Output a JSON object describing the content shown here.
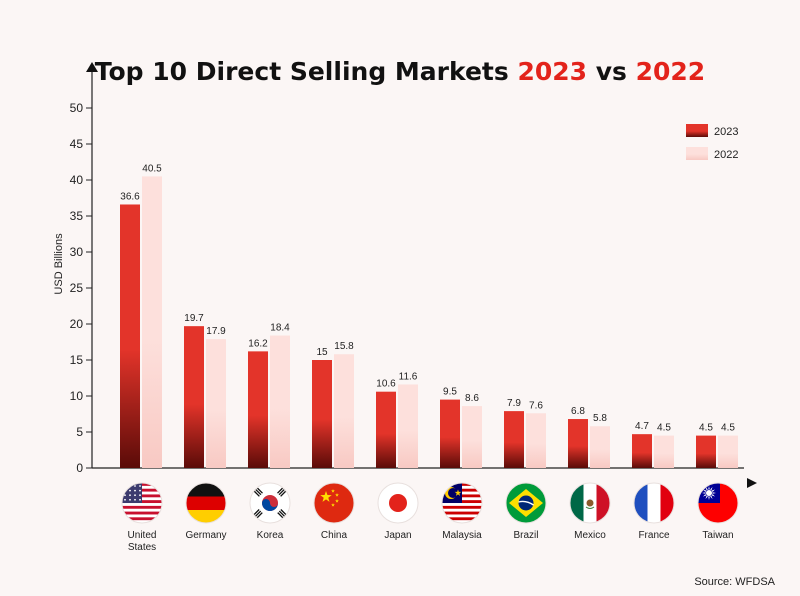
{
  "chart_data": {
    "type": "bar",
    "title": {
      "prefix": "Top 10 Direct Selling Markets ",
      "year_a": "2023",
      "middle": " vs ",
      "year_b": "2022"
    },
    "ylabel": "USD Billions",
    "xlabel": "",
    "ylim": [
      0,
      50
    ],
    "yticks": [
      0,
      5,
      10,
      15,
      20,
      25,
      30,
      35,
      40,
      45,
      50
    ],
    "grid": false,
    "legend_position": "top-right",
    "categories": [
      {
        "name": "United States",
        "lines": [
          "United",
          "States"
        ],
        "flag": "us-flag-icon"
      },
      {
        "name": "Germany",
        "lines": [
          "Germany"
        ],
        "flag": "germany-flag-icon"
      },
      {
        "name": "Korea",
        "lines": [
          "Korea"
        ],
        "flag": "korea-flag-icon"
      },
      {
        "name": "China",
        "lines": [
          "China"
        ],
        "flag": "china-flag-icon"
      },
      {
        "name": "Japan",
        "lines": [
          "Japan"
        ],
        "flag": "japan-flag-icon"
      },
      {
        "name": "Malaysia",
        "lines": [
          "Malaysia"
        ],
        "flag": "malaysia-flag-icon"
      },
      {
        "name": "Brazil",
        "lines": [
          "Brazil"
        ],
        "flag": "brazil-flag-icon"
      },
      {
        "name": "Mexico",
        "lines": [
          "Mexico"
        ],
        "flag": "mexico-flag-icon"
      },
      {
        "name": "France",
        "lines": [
          "France"
        ],
        "flag": "france-flag-icon"
      },
      {
        "name": "Taiwan",
        "lines": [
          "Taiwan"
        ],
        "flag": "taiwan-flag-icon"
      }
    ],
    "series": [
      {
        "name": "2023",
        "color": "#e3342a",
        "color_dark": "#5a0b08",
        "values": [
          36.6,
          19.7,
          16.2,
          15,
          10.6,
          9.5,
          7.9,
          6.8,
          4.7,
          4.5
        ],
        "labels": [
          "36.6",
          "19.7",
          "16.2",
          "15",
          "10.6",
          "9.5",
          "7.9",
          "6.8",
          "4.7",
          "4.5"
        ]
      },
      {
        "name": "2022",
        "color": "#fde0dc",
        "color_dark": "#f8c9c3",
        "values": [
          40.5,
          17.9,
          18.4,
          15.8,
          11.6,
          8.6,
          7.6,
          5.8,
          4.5,
          4.5
        ],
        "labels": [
          "40.5",
          "17.9",
          "18.4",
          "15.8",
          "11.6",
          "8.6",
          "7.6",
          "5.8",
          "4.5",
          "4.5"
        ]
      }
    ],
    "source": "Source: WFDSA",
    "accent_color": "#e3231b"
  }
}
